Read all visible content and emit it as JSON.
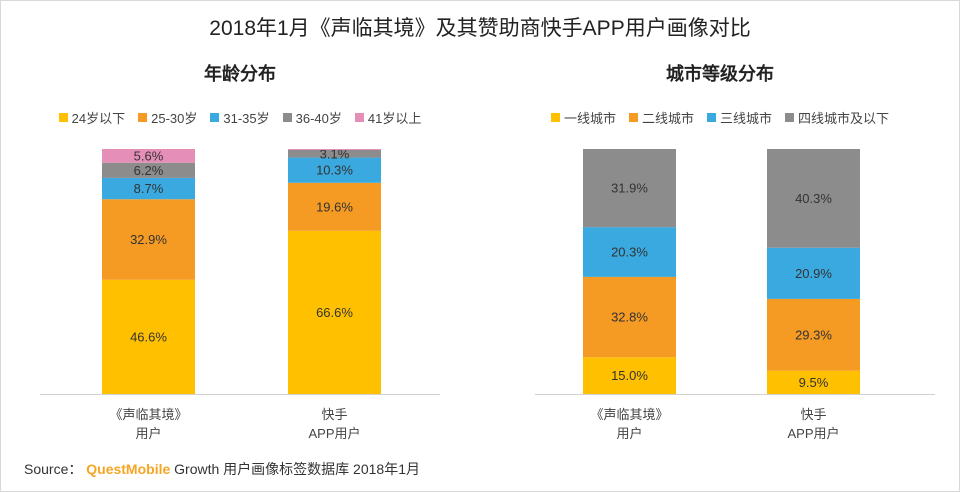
{
  "title": "2018年1月《声临其境》及其赞助商快手APP用户画像对比",
  "source": {
    "prefix": "Source：",
    "brand": "QuestMobile",
    "text": "Growth 用户画像标签数据库 2018年1月"
  },
  "chart_data": [
    {
      "type": "stacked-bar",
      "title": "年龄分布",
      "categories": [
        [
          "《声临其境》",
          "用户"
        ],
        [
          "快手",
          "APP用户"
        ]
      ],
      "series": [
        {
          "name": "24岁以下",
          "color": "#ffc000",
          "values": [
            46.6,
            66.6
          ]
        },
        {
          "name": "25-30岁",
          "color": "#f59a23",
          "values": [
            32.9,
            19.6
          ]
        },
        {
          "name": "31-35岁",
          "color": "#3aa9e0",
          "values": [
            8.7,
            10.3
          ]
        },
        {
          "name": "36-40岁",
          "color": "#8c8c8c",
          "values": [
            6.2,
            3.1
          ]
        },
        {
          "name": "41岁以上",
          "color": "#e58fb8",
          "values": [
            5.6,
            0.4
          ]
        }
      ],
      "value_labels": [
        [
          "46.6%",
          "66.6%"
        ],
        [
          "32.9%",
          "19.6%"
        ],
        [
          "8.7%",
          "10.3%"
        ],
        [
          "6.2%",
          "3.1%"
        ],
        [
          "5.6%",
          ""
        ]
      ],
      "ylim": [
        0,
        100
      ],
      "legend": "top"
    },
    {
      "type": "stacked-bar",
      "title": "城市等级分布",
      "categories": [
        [
          "《声临其境》",
          "用户"
        ],
        [
          "快手",
          "APP用户"
        ]
      ],
      "series": [
        {
          "name": "一线城市",
          "color": "#ffc000",
          "values": [
            15.0,
            9.5
          ]
        },
        {
          "name": "二线城市",
          "color": "#f59a23",
          "values": [
            32.8,
            29.3
          ]
        },
        {
          "name": "三线城市",
          "color": "#3aa9e0",
          "values": [
            20.3,
            20.9
          ]
        },
        {
          "name": "四线城市及以下",
          "color": "#8c8c8c",
          "values": [
            31.9,
            40.3
          ]
        }
      ],
      "value_labels": [
        [
          "15.0%",
          "9.5%"
        ],
        [
          "32.8%",
          "29.3%"
        ],
        [
          "20.3%",
          "20.9%"
        ],
        [
          "31.9%",
          "40.3%"
        ]
      ],
      "ylim": [
        0,
        100
      ],
      "legend": "top"
    }
  ]
}
